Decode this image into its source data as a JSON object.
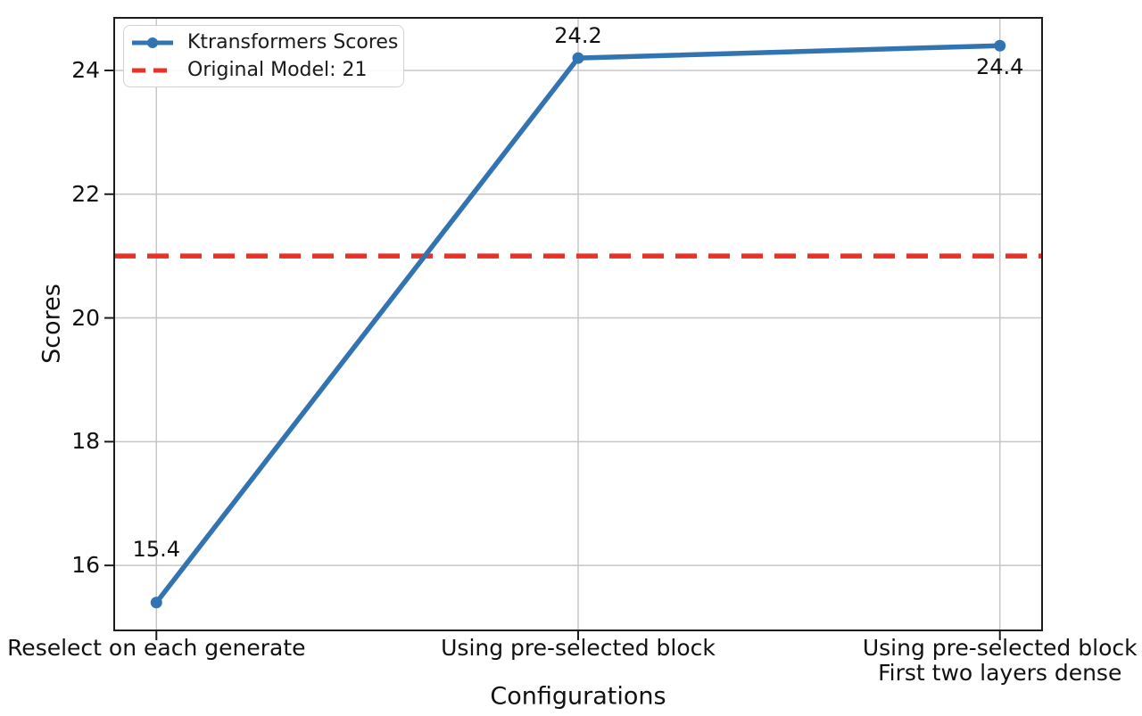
{
  "chart_data": {
    "type": "line",
    "categories": [
      "Reselect on each generate",
      "Using pre-selected block",
      "Using pre-selected block\nFirst two layers dense"
    ],
    "series": [
      {
        "name": "Ktransformers Scores",
        "values": [
          15.4,
          24.2,
          24.4
        ],
        "color": "#3273b1",
        "marker": "circle"
      }
    ],
    "point_labels": [
      "15.4",
      "24.2",
      "24.4"
    ],
    "reference_line": {
      "label": "Original Model: 21",
      "value": 21,
      "color": "#e83127",
      "style": "dashed"
    },
    "title": "",
    "xlabel": "Configurations",
    "ylabel": "Scores",
    "yticks": [
      16,
      18,
      20,
      22,
      24
    ],
    "ylim": [
      14.95,
      24.85
    ],
    "xlim": [
      -0.1,
      2.1
    ],
    "grid": true,
    "grid_color": "#c6c6c6",
    "spine_color": "#1c1c1c",
    "legend_position": "upper left"
  }
}
